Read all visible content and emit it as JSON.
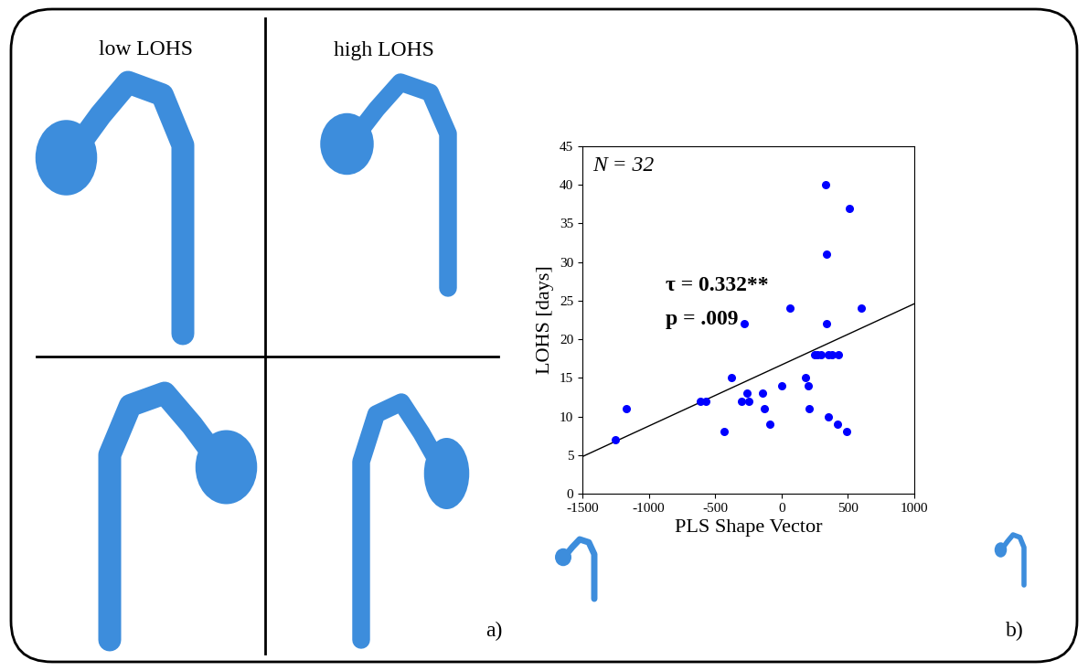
{
  "chart_data": {
    "type": "scatter",
    "x": [
      -1250,
      -1170,
      -610,
      -570,
      -430,
      -380,
      -300,
      -280,
      -260,
      -250,
      -140,
      -130,
      -90,
      0,
      65,
      180,
      200,
      210,
      250,
      270,
      300,
      330,
      340,
      340,
      350,
      350,
      380,
      420,
      430,
      490,
      510,
      600
    ],
    "values": [
      7,
      11,
      12,
      12,
      8,
      15,
      12,
      22,
      13,
      12,
      13,
      11,
      9,
      14,
      24,
      15,
      14,
      11,
      18,
      18,
      18,
      40,
      22,
      31,
      18,
      10,
      18,
      9,
      18,
      8,
      37,
      24
    ],
    "color": "#0000ff",
    "marker": "o",
    "trend_line": {
      "x": [
        -1500,
        1000
      ],
      "values": [
        4.8,
        24.6
      ],
      "color": "#000000"
    },
    "x_label": "PLS Shape Vector",
    "y_label": "LOHS [days]",
    "xlim": [
      -1500,
      1000
    ],
    "xticks": [
      -1500,
      -1000,
      -500,
      0,
      500,
      1000
    ],
    "ylim": [
      0,
      45
    ],
    "yticks": [
      0,
      5,
      10,
      15,
      20,
      25,
      30,
      35,
      40,
      45
    ],
    "grid": false,
    "annotations": [
      "N = 32",
      "τ = 0.332**",
      "p = .009"
    ]
  },
  "shape_headers": [
    "low LOHS",
    "high LOHS"
  ],
  "panel_labels": [
    "a)",
    "b)"
  ]
}
